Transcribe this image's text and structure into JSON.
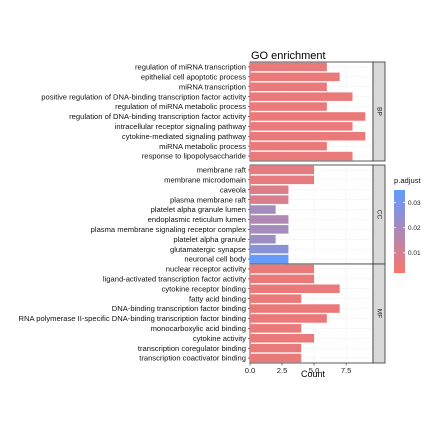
{
  "chart_data": {
    "type": "bar",
    "orientation": "horizontal",
    "title": "GO enrichment",
    "xlabel": "Count",
    "ylabel": "",
    "xlim": [
      0,
      9.6
    ],
    "xticks": [
      "0.0",
      "2.5",
      "5.0",
      "7.5"
    ],
    "legend": {
      "title": "p.adjust",
      "position": "right",
      "ticks": [
        "0.03",
        "0.02",
        "0.01"
      ],
      "range": [
        0.002,
        0.035
      ],
      "colors": {
        "low": "#f8766d",
        "high": "#619cff"
      }
    },
    "facets": [
      {
        "label": "BP",
        "terms": [
          {
            "term": "regulation of miRNA transcription",
            "count": 6,
            "padj": 0.005
          },
          {
            "term": "epithelial cell apoptotic process",
            "count": 7,
            "padj": 0.005
          },
          {
            "term": "miRNA transcription",
            "count": 6,
            "padj": 0.005
          },
          {
            "term": "positive regulation of DNA-binding transcription factor activity",
            "count": 8,
            "padj": 0.005
          },
          {
            "term": "regulation of miRNA metabolic process",
            "count": 6,
            "padj": 0.005
          },
          {
            "term": "regulation of DNA-binding transcription factor activity",
            "count": 9,
            "padj": 0.005
          },
          {
            "term": "intracellular receptor signaling pathway",
            "count": 8,
            "padj": 0.005
          },
          {
            "term": "cytokine-mediated signaling pathway",
            "count": 9,
            "padj": 0.005
          },
          {
            "term": "miRNA metabolic process",
            "count": 6,
            "padj": 0.005
          },
          {
            "term": "response to lipopolysaccharide",
            "count": 8,
            "padj": 0.005
          }
        ]
      },
      {
        "label": "CC",
        "terms": [
          {
            "term": "membrane raft",
            "count": 5,
            "padj": 0.006
          },
          {
            "term": "membrane microdomain",
            "count": 5,
            "padj": 0.006
          },
          {
            "term": "caveola",
            "count": 3,
            "padj": 0.008
          },
          {
            "term": "plasma membrane raft",
            "count": 3,
            "padj": 0.009
          },
          {
            "term": "platelet alpha granule lumen",
            "count": 2,
            "padj": 0.02
          },
          {
            "term": "endoplasmic reticulum lumen",
            "count": 3,
            "padj": 0.018
          },
          {
            "term": "plasma membrane signaling receptor complex",
            "count": 3,
            "padj": 0.02
          },
          {
            "term": "platelet alpha granule",
            "count": 2,
            "padj": 0.022
          },
          {
            "term": "glutamatergic synapse",
            "count": 3,
            "padj": 0.026
          },
          {
            "term": "neuronal cell body",
            "count": 3,
            "padj": 0.034
          }
        ]
      },
      {
        "label": "MF",
        "terms": [
          {
            "term": "nuclear receptor activity",
            "count": 5,
            "padj": 0.005
          },
          {
            "term": "ligand-activated transcription factor activity",
            "count": 5,
            "padj": 0.005
          },
          {
            "term": "cytokine receptor binding",
            "count": 7,
            "padj": 0.005
          },
          {
            "term": "fatty acid binding",
            "count": 4,
            "padj": 0.005
          },
          {
            "term": "DNA-binding transcription factor binding",
            "count": 7,
            "padj": 0.005
          },
          {
            "term": "RNA polymerase II-specific DNA-binding transcription factor binding",
            "count": 6,
            "padj": 0.005
          },
          {
            "term": "monocarboxylic acid binding",
            "count": 4,
            "padj": 0.005
          },
          {
            "term": "cytokine activity",
            "count": 5,
            "padj": 0.005
          },
          {
            "term": "transcription coregulator binding",
            "count": 4,
            "padj": 0.005
          },
          {
            "term": "transcription coactivator binding",
            "count": 4,
            "padj": 0.005
          }
        ]
      }
    ]
  }
}
